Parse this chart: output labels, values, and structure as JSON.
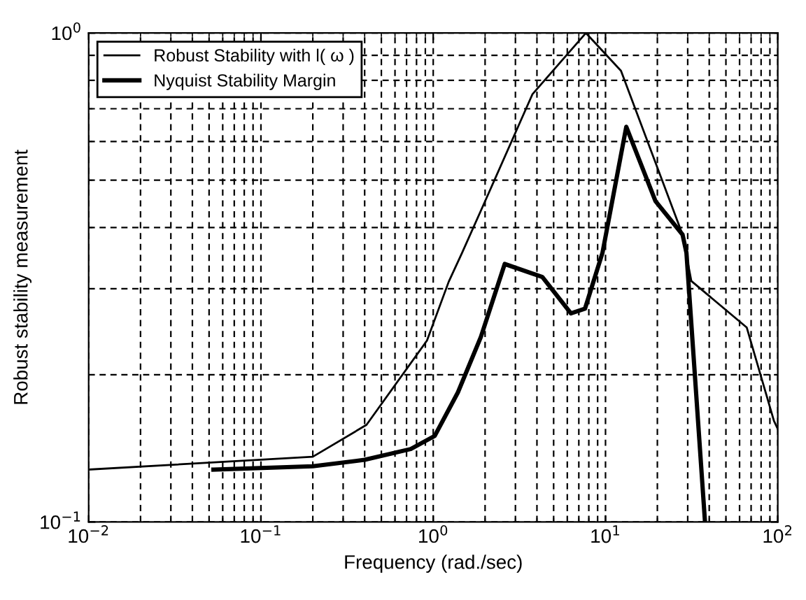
{
  "chart_data": {
    "type": "line",
    "xlabel": "Frequency (rad./sec)",
    "ylabel": "Robust stability measurement",
    "log": "xy",
    "grid": true,
    "legend": "top left",
    "line_style": "solid",
    "marker": "none",
    "xlim": [
      0.01,
      100
    ],
    "ylim": [
      0.1,
      1
    ],
    "xticks": [
      {
        "value": 0.01,
        "label": "10$^{−2}$"
      },
      {
        "value": 0.1,
        "label": "10$^{−1}$"
      },
      {
        "value": 1,
        "label": "10$^{0}$"
      },
      {
        "value": 10,
        "label": "10$^{1}$"
      },
      {
        "value": 100,
        "label": "10$^{2}$"
      }
    ],
    "yticks": [
      {
        "value": 0.1,
        "label": "10$^{−1}$"
      },
      {
        "value": 1,
        "label": "10$^{0}$"
      }
    ],
    "series": [
      {
        "name": "Robust Stability with l( ω )",
        "color": "#000000",
        "x": [
          0.01,
          0.2,
          0.41,
          0.92,
          1.23,
          1.47,
          2.04,
          3.77,
          7.7,
          12.3,
          28,
          31.5,
          66,
          95,
          100
        ],
        "values": [
          0.128,
          0.136,
          0.158,
          0.235,
          0.31,
          0.355,
          0.46,
          0.75,
          1.0,
          0.837,
          0.387,
          0.311,
          0.25,
          0.161,
          0.155
        ]
      },
      {
        "name": "Nyquist Stability Margin",
        "color": "#000000",
        "x": [
          0.053,
          0.2,
          0.4,
          0.74,
          1.02,
          1.39,
          1.89,
          2.6,
          4.3,
          6.3,
          7.6,
          9.6,
          13.2,
          19.5,
          28,
          29.5,
          37.8
        ],
        "values": [
          0.128,
          0.13,
          0.134,
          0.141,
          0.15,
          0.184,
          0.239,
          0.337,
          0.317,
          0.267,
          0.273,
          0.355,
          0.643,
          0.453,
          0.387,
          0.355,
          0.1
        ]
      }
    ]
  }
}
